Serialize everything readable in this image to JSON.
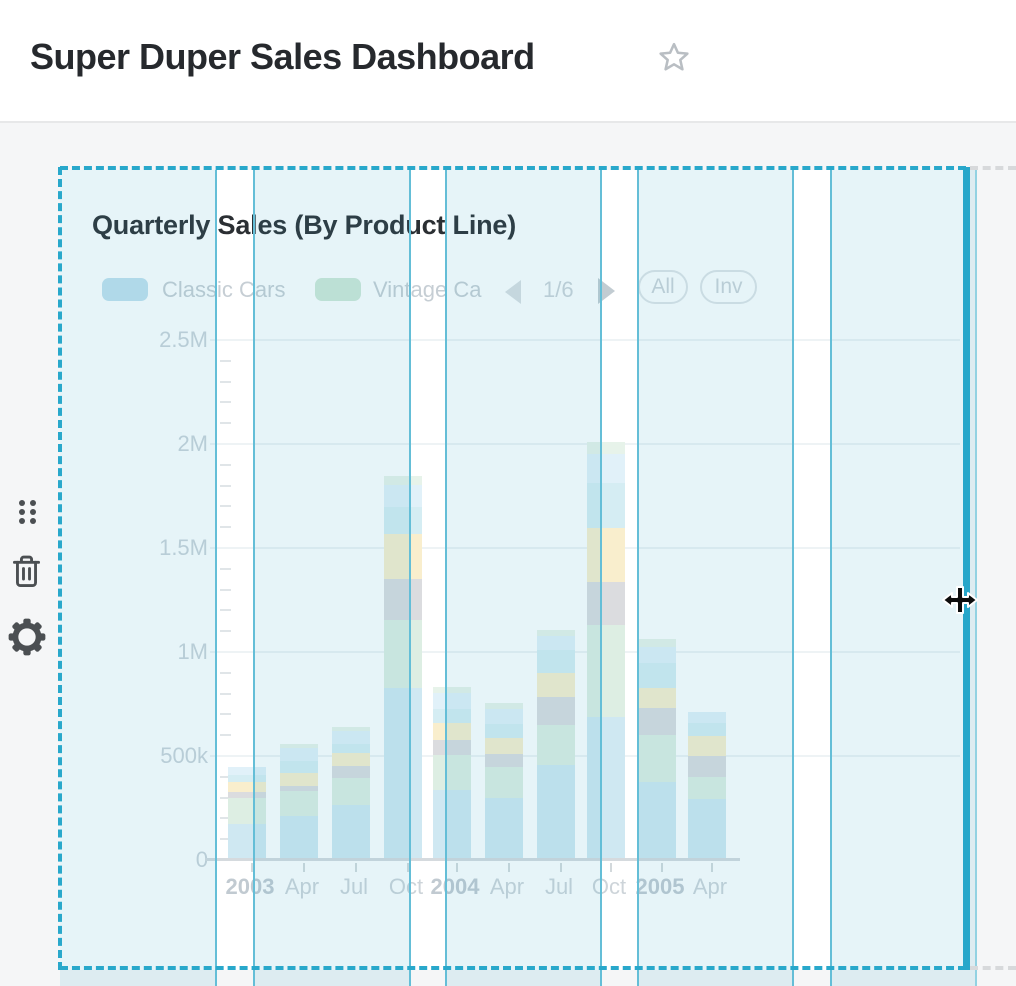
{
  "header": {
    "title": "Super Duper Sales Dashboard",
    "favorite_icon": "star-outline"
  },
  "widget_toolbar": {
    "drag_handle_icon": "drag-handle-dots",
    "delete_icon": "trash",
    "settings_icon": "gear"
  },
  "widget": {
    "title": "Quarterly Sales (By Product Line)",
    "legend": {
      "visible_items": [
        {
          "label": "Classic Cars",
          "color": "#c2e1ee"
        },
        {
          "label": "Vintage Ca",
          "color": "#cfe8d7"
        }
      ],
      "pagination": {
        "current_page": "1/6",
        "prev_icon": "chevron-left",
        "next_icon": "chevron-right"
      },
      "buttons": [
        {
          "label": "All"
        },
        {
          "label": "Inv"
        }
      ]
    }
  },
  "chart_data": {
    "type": "bar",
    "stacked": true,
    "title": "Quarterly Sales (By Product Line)",
    "categories": [
      "2003",
      "Apr",
      "Jul",
      "Oct",
      "2004",
      "Apr",
      "Jul",
      "Oct",
      "2005",
      "Apr"
    ],
    "series": [
      {
        "name": "Classic Cars",
        "color": "#cfe8f2",
        "values": [
          173000,
          210000,
          265000,
          827000,
          337000,
          300000,
          457000,
          688000,
          373000,
          293000
        ]
      },
      {
        "name": "Vintage Ca",
        "color": "#ddeee3",
        "values": [
          125000,
          120000,
          130000,
          327000,
          168000,
          145000,
          192000,
          442000,
          229000,
          106000
        ]
      },
      {
        "name": "unlabeled (gray)",
        "color": "#dbdcdf",
        "values": [
          30000,
          28000,
          55000,
          197000,
          72000,
          65000,
          135000,
          207000,
          130000,
          101000
        ]
      },
      {
        "name": "unlabeled (cream)",
        "color": "#f9eecd",
        "values": [
          48000,
          62000,
          65000,
          217000,
          80000,
          75000,
          115000,
          259000,
          96000,
          96000
        ]
      },
      {
        "name": "unlabeled (light teal)",
        "color": "#d5edf3",
        "values": [
          34000,
          58000,
          45000,
          130000,
          70000,
          70000,
          111000,
          217000,
          120000,
          63000
        ]
      },
      {
        "name": "unlabeled (pale blue)",
        "color": "#e1f1f9",
        "values": [
          38000,
          62000,
          60000,
          105000,
          75000,
          70000,
          67000,
          137000,
          77000,
          53000
        ]
      },
      {
        "name": "unlabeled (pale green)",
        "color": "#e7f3ea",
        "values": [
          0,
          18000,
          20000,
          45000,
          28000,
          30000,
          29000,
          60000,
          38000,
          0
        ]
      }
    ],
    "xlabel": "",
    "ylabel": "",
    "ylim": [
      0,
      2500000
    ],
    "yticks": [
      "0",
      "500k",
      "1M",
      "1.5M",
      "2M",
      "2.5M"
    ],
    "grid": "horizontal-major",
    "legend_position": "top"
  },
  "grid_overlay": {
    "accent_color": "#29a8cb",
    "column_line_color": "#64bed7",
    "outer_column_line_color": "#92d2e2",
    "column_tint": "rgba(58,168,198,0.13)",
    "ghost_outline_color": "#d7d9db"
  },
  "cursor": {
    "type": "horizontal-move-cursor"
  }
}
